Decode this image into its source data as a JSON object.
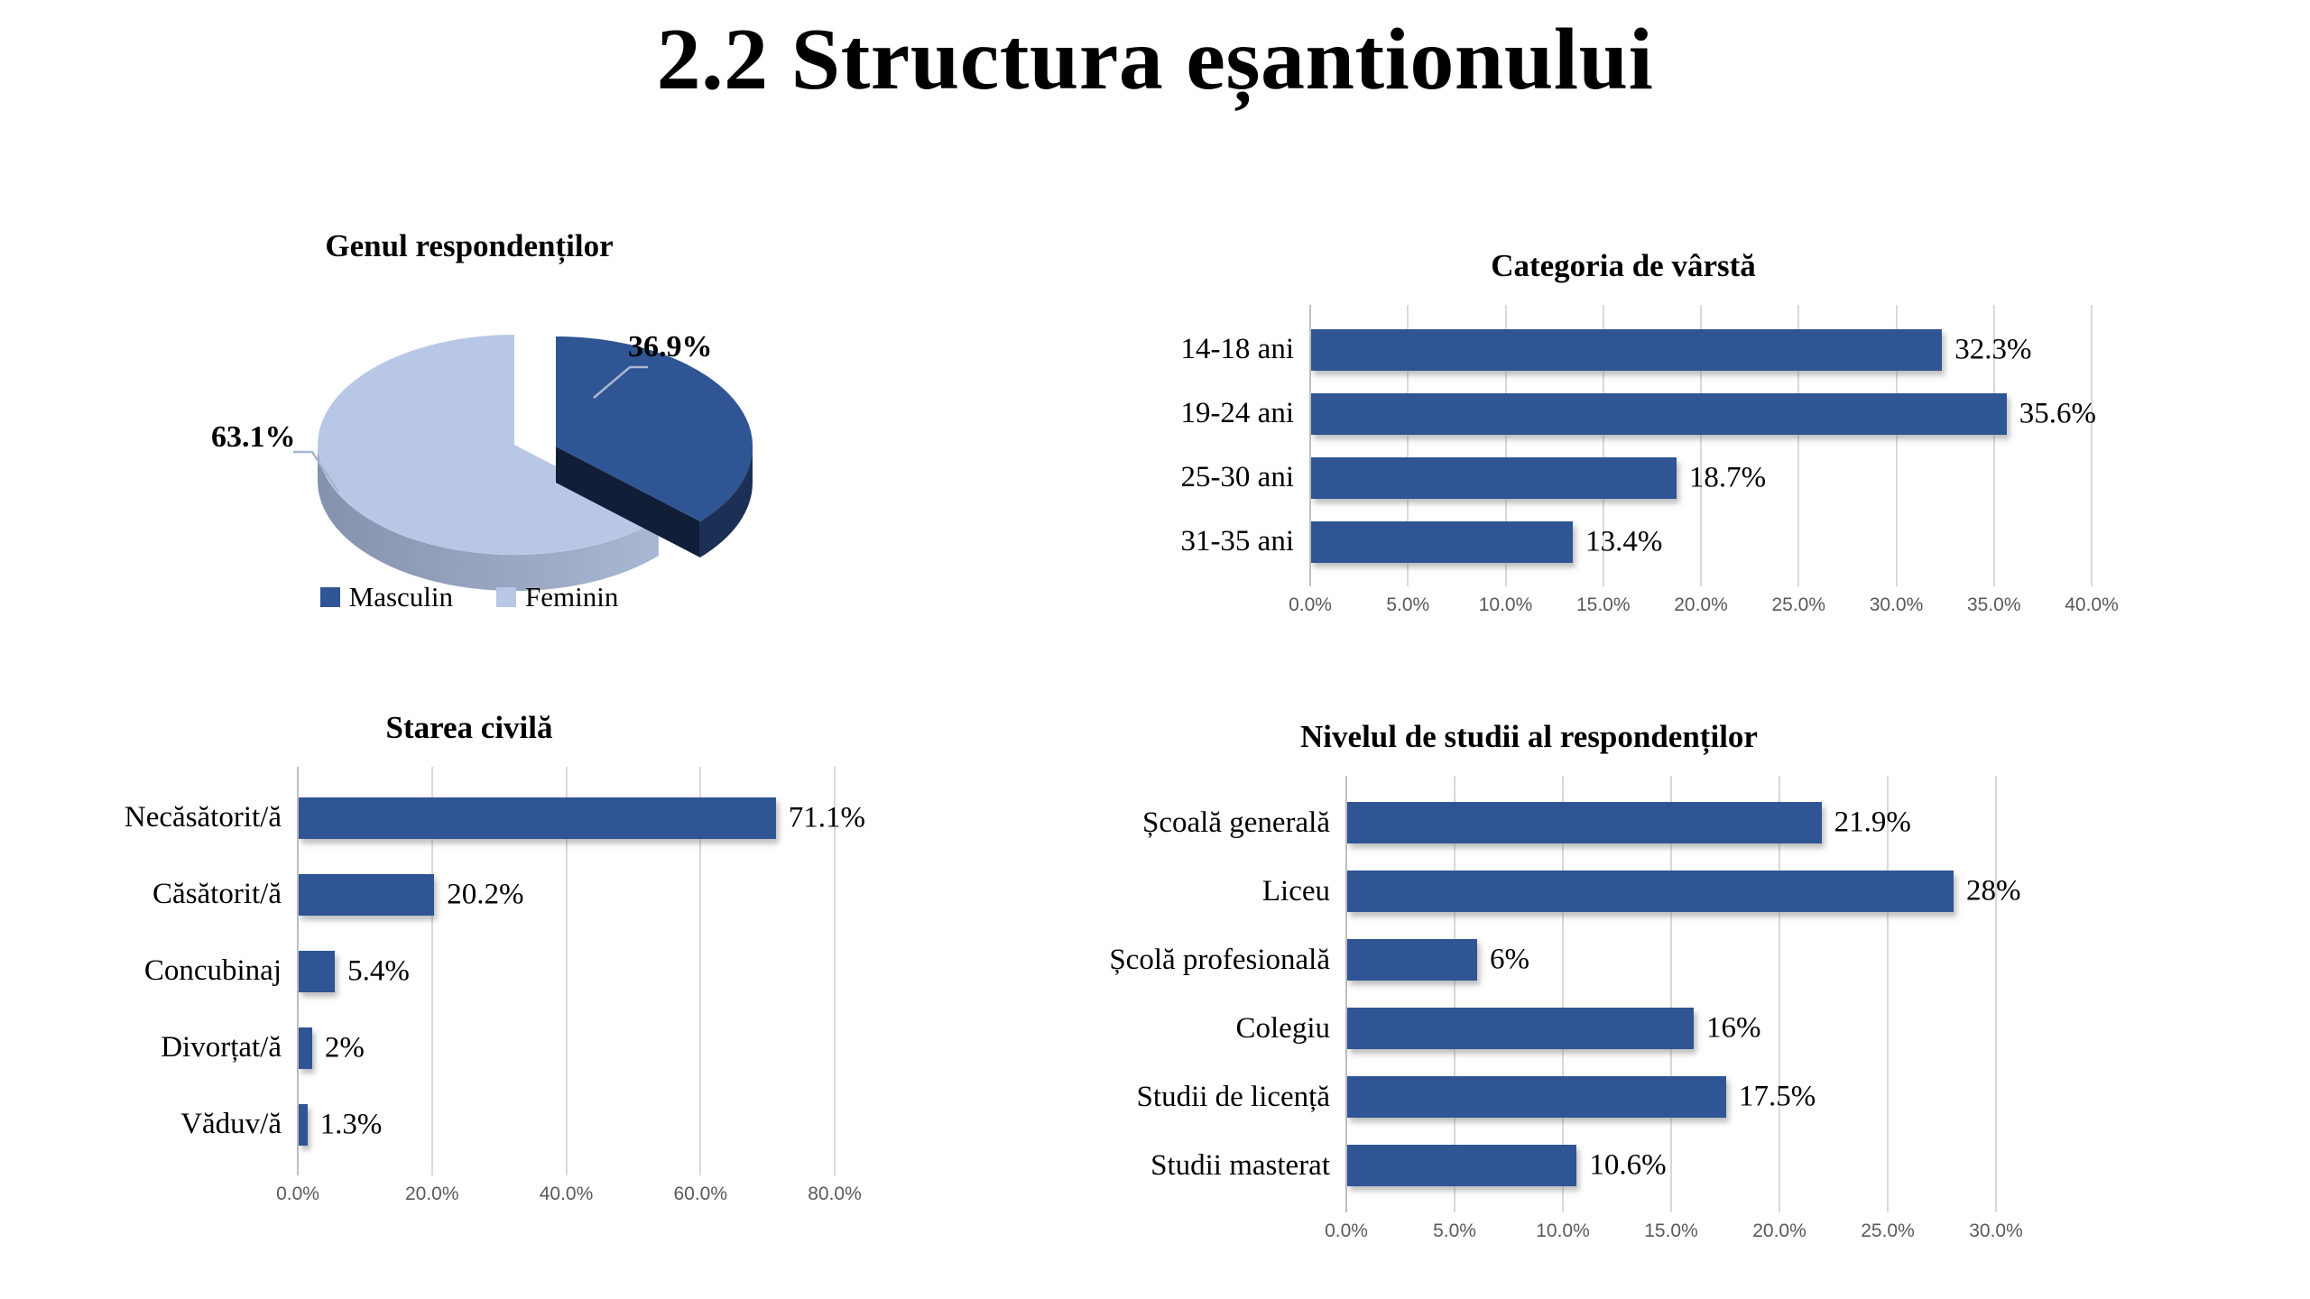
{
  "slide": {
    "title": "2.2 Structura eșantionului"
  },
  "colors": {
    "bar": "#2F5594",
    "masculin_top": "#2F5594",
    "masculin_rim": "#1C3055",
    "masculin_cut": "#111E38",
    "feminin_top": "#B9C7E6",
    "feminin_rim_start": "#8492AE",
    "feminin_rim_end": "#A9B7D3",
    "leader_line": "#A9B6D0",
    "gridline": "#D9D9D9",
    "axis_line": "#BFBFBF",
    "tick_text": "#595959"
  },
  "chart_data": [
    {
      "type": "pie",
      "key": "gender",
      "title": "Genul respondenților",
      "style": "3d-exploded",
      "labels": [
        "Masculin",
        "Feminin"
      ],
      "values": [
        36.9,
        63.1
      ],
      "value_labels": [
        "36.9%",
        "63.1%"
      ],
      "colors": [
        "#2F5594",
        "#B9C7E6"
      ],
      "legend_position": "bottom"
    },
    {
      "type": "bar",
      "key": "age",
      "title": "Categoria de vârstă",
      "orientation": "horizontal",
      "grid": true,
      "categories": [
        "14-18 ani",
        "19-24 ani",
        "25-30 ani",
        "31-35 ani"
      ],
      "values": [
        32.3,
        35.6,
        18.7,
        13.4
      ],
      "value_labels": [
        "32.3%",
        "35.6%",
        "18.7%",
        "13.4%"
      ],
      "xlim": [
        0,
        40
      ],
      "tick_labels": [
        "0.0%",
        "5.0%",
        "10.0%",
        "15.0%",
        "20.0%",
        "25.0%",
        "30.0%",
        "35.0%",
        "40.0%"
      ]
    },
    {
      "type": "bar",
      "key": "marital",
      "title": "Starea civilă",
      "orientation": "horizontal",
      "grid": true,
      "categories": [
        "Necăsătorit/ă",
        "Căsătorit/ă",
        "Concubinaj",
        "Divorțat/ă",
        "Văduv/ă"
      ],
      "values": [
        71.1,
        20.2,
        5.4,
        2,
        1.3
      ],
      "value_labels": [
        "71.1%",
        "20.2%",
        "5.4%",
        "2%",
        "1.3%"
      ],
      "xlim": [
        0,
        80
      ],
      "tick_labels": [
        "0.0%",
        "20.0%",
        "40.0%",
        "60.0%",
        "80.0%"
      ]
    },
    {
      "type": "bar",
      "key": "education",
      "title": "Nivelul de studii al respondenților",
      "orientation": "horizontal",
      "grid": true,
      "categories": [
        "Școală generală",
        "Liceu",
        "Școlă profesională",
        "Colegiu",
        "Studii de licență",
        "Studii masterat"
      ],
      "values": [
        21.9,
        28,
        6,
        16,
        17.5,
        10.6
      ],
      "value_labels": [
        "21.9%",
        "28%",
        "6%",
        "16%",
        "17.5%",
        "10.6%"
      ],
      "xlim": [
        0,
        30
      ],
      "tick_labels": [
        "0.0%",
        "5.0%",
        "10.0%",
        "15.0%",
        "20.0%",
        "25.0%",
        "30.0%"
      ]
    }
  ]
}
